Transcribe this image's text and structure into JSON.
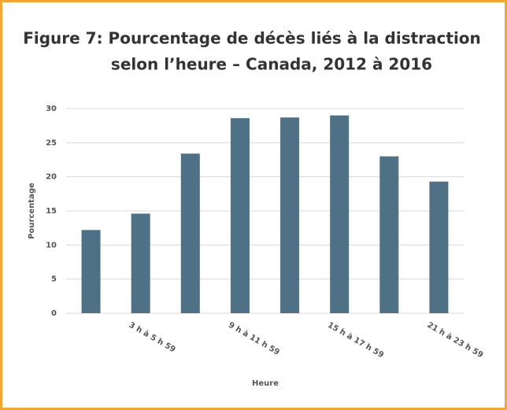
{
  "chart_data": {
    "type": "bar",
    "title": [
      "Figure 7:  Pourcentage de décès liés à la distraction",
      "selon l’heure – Canada, 2012 à 2016"
    ],
    "xlabel": "Heure",
    "ylabel": "Pourcentage",
    "categories": [
      null,
      "3 h à 5 h 59",
      null,
      "9 h à 11 h 59",
      null,
      "15 h à 17 h 59",
      null,
      "21 h à 23 h 59"
    ],
    "values": [
      12.2,
      14.6,
      23.4,
      28.6,
      28.7,
      29.0,
      23.0,
      19.3
    ],
    "color": "#4e7185",
    "ylim": [
      0,
      30
    ],
    "yticks": [
      0,
      5,
      10,
      15,
      20,
      25,
      30
    ],
    "grid": true
  }
}
